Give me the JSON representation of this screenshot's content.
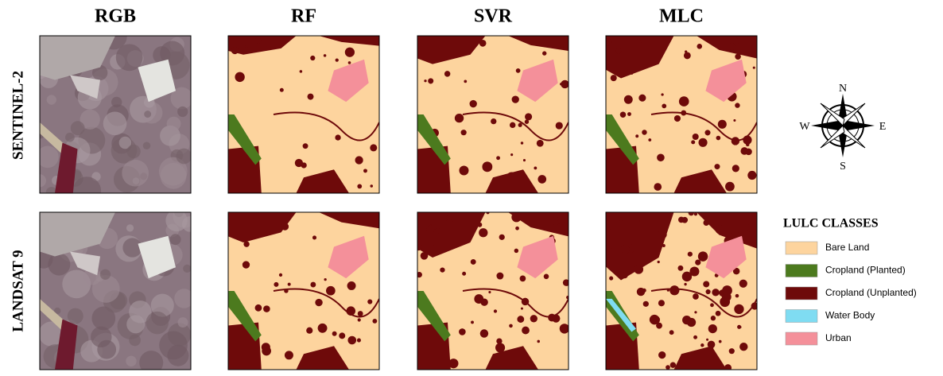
{
  "columns": [
    "RGB",
    "RF",
    "SVR",
    "MLC"
  ],
  "rows": [
    "SENTINEL-2",
    "LANDSAT 9"
  ],
  "compass": {
    "north": "N",
    "south": "S",
    "east": "E",
    "west": "W"
  },
  "legend": {
    "title": "LULC CLASSES",
    "items": [
      {
        "label": "Bare Land",
        "color": "#fdd49e"
      },
      {
        "label": "Cropland (Planted)",
        "color": "#4c7a1e"
      },
      {
        "label": "Cropland (Unplanted)",
        "color": "#6e0a0a"
      },
      {
        "label": "Water Body",
        "color": "#7fdcf2"
      },
      {
        "label": "Urban",
        "color": "#f4909a"
      }
    ]
  }
}
